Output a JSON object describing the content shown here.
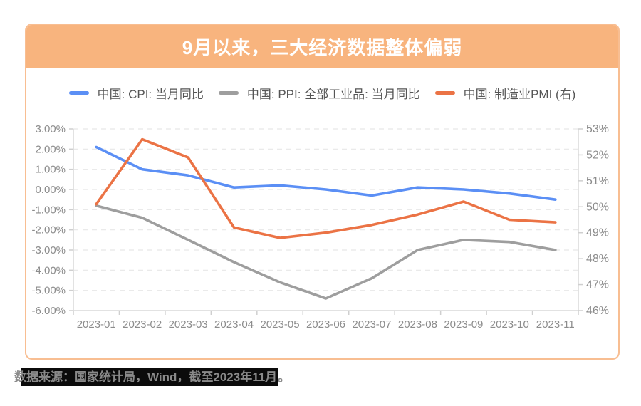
{
  "header": {
    "title": "9月以来，三大经济数据整体偏弱"
  },
  "footer": {
    "highlighted": "数据来源：国家统计局，Wind，截至2023年11月",
    "suffix": "。"
  },
  "theme": {
    "card_border": "#F8BE92",
    "header_bg": "#F8B47E",
    "title_color": "#FFFFFF",
    "grid_color": "#E8E8E8",
    "axis_line_color": "#D9D9D9",
    "tick_color": "#CFCFCF",
    "axis_label_color": "#8C8C8C",
    "legend_label_color": "#555555",
    "highlight_bg": "#0B0B0B"
  },
  "chart_data": {
    "type": "line",
    "title": "9月以来，三大经济数据整体偏弱",
    "legend_position": "top",
    "grid": "horizontal-dashed",
    "categories": [
      "2023-01",
      "2023-02",
      "2023-03",
      "2023-04",
      "2023-05",
      "2023-06",
      "2023-07",
      "2023-08",
      "2023-09",
      "2023-10",
      "2023-11"
    ],
    "series": [
      {
        "name": "中国: CPI: 当月同比",
        "yaxis": "left",
        "color": "#5B8FF5",
        "values": [
          2.1,
          1.0,
          0.7,
          0.1,
          0.2,
          0.0,
          -0.3,
          0.1,
          0.0,
          -0.2,
          -0.5
        ]
      },
      {
        "name": "中国: PPI: 全部工业品: 当月同比",
        "yaxis": "left",
        "color": "#9E9E9E",
        "values": [
          -0.8,
          -1.4,
          -2.5,
          -3.6,
          -4.6,
          -5.4,
          -4.4,
          -3.0,
          -2.5,
          -2.6,
          -3.0
        ]
      },
      {
        "name": "中国: 制造业PMI (右)",
        "yaxis": "right",
        "color": "#EB7345",
        "values": [
          50.1,
          52.6,
          51.9,
          49.2,
          48.8,
          49.0,
          49.3,
          49.7,
          50.2,
          49.5,
          49.4
        ]
      }
    ],
    "left_axis": {
      "min": -6,
      "max": 3,
      "tick_step": 1,
      "tick_labels": [
        "3.00%",
        "2.00%",
        "1.00%",
        "0.00%",
        "-1.00%",
        "-2.00%",
        "-3.00%",
        "-4.00%",
        "-5.00%",
        "-6.00%"
      ]
    },
    "right_axis": {
      "min": 46,
      "max": 53,
      "tick_step": 1,
      "tick_labels": [
        "53%",
        "52%",
        "51%",
        "50%",
        "49%",
        "48%",
        "47%",
        "46%"
      ]
    }
  }
}
